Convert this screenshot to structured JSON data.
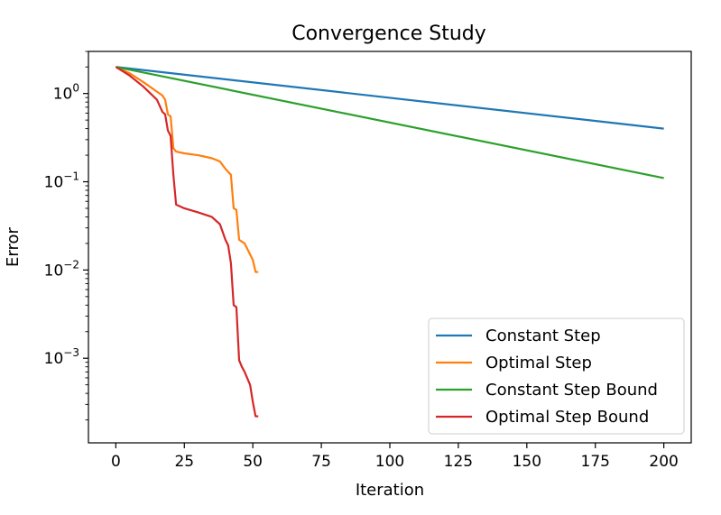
{
  "chart_data": {
    "type": "line",
    "title": "Convergence Study",
    "xlabel": "Iteration",
    "ylabel": "Error",
    "xlim": [
      -10,
      210
    ],
    "ylim": [
      0.00011,
      3.0
    ],
    "yscale": "log",
    "xticks": [
      0,
      25,
      50,
      75,
      100,
      125,
      150,
      175,
      200
    ],
    "yticks": [
      {
        "value": 1,
        "base": "10",
        "exp": "0"
      },
      {
        "value": 0.1,
        "base": "10",
        "exp": "−1"
      },
      {
        "value": 0.01,
        "base": "10",
        "exp": "−2"
      },
      {
        "value": 0.001,
        "base": "10",
        "exp": "−3"
      }
    ],
    "grid": false,
    "legend_position": "lower-right",
    "series": [
      {
        "name": "Constant Step",
        "color": "#1f77b4",
        "points": [
          [
            0,
            2.0
          ],
          [
            200,
            0.4
          ]
        ]
      },
      {
        "name": "Optimal Step",
        "color": "#ff7f0e",
        "points": [
          [
            0,
            2.0
          ],
          [
            5,
            1.7
          ],
          [
            10,
            1.35
          ],
          [
            15,
            1.05
          ],
          [
            17,
            0.95
          ],
          [
            18,
            0.85
          ],
          [
            19,
            0.58
          ],
          [
            20,
            0.55
          ],
          [
            21,
            0.24
          ],
          [
            22,
            0.22
          ],
          [
            25,
            0.21
          ],
          [
            30,
            0.2
          ],
          [
            35,
            0.185
          ],
          [
            38,
            0.17
          ],
          [
            40,
            0.14
          ],
          [
            42,
            0.12
          ],
          [
            43,
            0.05
          ],
          [
            44,
            0.048
          ],
          [
            45,
            0.022
          ],
          [
            47,
            0.02
          ],
          [
            49,
            0.015
          ],
          [
            50,
            0.013
          ],
          [
            51,
            0.0095
          ],
          [
            52,
            0.0095
          ]
        ]
      },
      {
        "name": "Constant Step Bound",
        "color": "#2ca02c",
        "points": [
          [
            0,
            2.0
          ],
          [
            200,
            0.11
          ]
        ]
      },
      {
        "name": "Optimal Step Bound",
        "color": "#d62728",
        "points": [
          [
            0,
            2.0
          ],
          [
            5,
            1.6
          ],
          [
            10,
            1.2
          ],
          [
            15,
            0.85
          ],
          [
            17,
            0.62
          ],
          [
            18,
            0.58
          ],
          [
            19,
            0.38
          ],
          [
            20,
            0.33
          ],
          [
            21,
            0.12
          ],
          [
            22,
            0.055
          ],
          [
            25,
            0.05
          ],
          [
            30,
            0.045
          ],
          [
            35,
            0.04
          ],
          [
            38,
            0.033
          ],
          [
            40,
            0.022
          ],
          [
            41,
            0.019
          ],
          [
            42,
            0.012
          ],
          [
            43,
            0.004
          ],
          [
            44,
            0.0038
          ],
          [
            45,
            0.00095
          ],
          [
            46,
            0.0008
          ],
          [
            47,
            0.0007
          ],
          [
            49,
            0.0005
          ],
          [
            50,
            0.00032
          ],
          [
            51,
            0.00022
          ],
          [
            52,
            0.00022
          ]
        ]
      }
    ]
  }
}
